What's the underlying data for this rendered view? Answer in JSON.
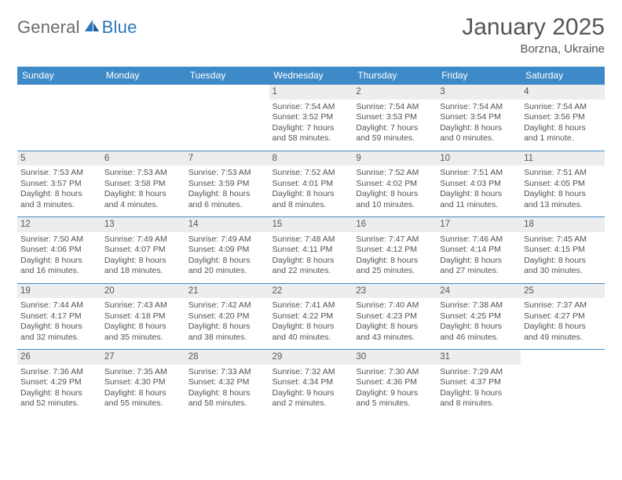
{
  "logo": {
    "word1": "General",
    "word2": "Blue"
  },
  "title": "January 2025",
  "location": "Borzna, Ukraine",
  "colors": {
    "header_bg": "#3e8ac8",
    "header_text": "#ffffff",
    "daynum_bg": "#ededed",
    "text": "#525252",
    "title_text": "#555555",
    "logo_gray": "#6a6a6a",
    "logo_blue": "#2a77bb",
    "rule": "#3e8ac8"
  },
  "typography": {
    "title_fontsize": 30,
    "location_fontsize": 15,
    "dayhead_fontsize": 12,
    "daynum_fontsize": 11.5,
    "body_fontsize": 10.5,
    "logo_fontsize": 22
  },
  "day_names": [
    "Sunday",
    "Monday",
    "Tuesday",
    "Wednesday",
    "Thursday",
    "Friday",
    "Saturday"
  ],
  "weeks": [
    [
      null,
      null,
      null,
      {
        "n": "1",
        "sunrise": "7:54 AM",
        "sunset": "3:52 PM",
        "daylight": "7 hours and 58 minutes."
      },
      {
        "n": "2",
        "sunrise": "7:54 AM",
        "sunset": "3:53 PM",
        "daylight": "7 hours and 59 minutes."
      },
      {
        "n": "3",
        "sunrise": "7:54 AM",
        "sunset": "3:54 PM",
        "daylight": "8 hours and 0 minutes."
      },
      {
        "n": "4",
        "sunrise": "7:54 AM",
        "sunset": "3:56 PM",
        "daylight": "8 hours and 1 minute."
      }
    ],
    [
      {
        "n": "5",
        "sunrise": "7:53 AM",
        "sunset": "3:57 PM",
        "daylight": "8 hours and 3 minutes."
      },
      {
        "n": "6",
        "sunrise": "7:53 AM",
        "sunset": "3:58 PM",
        "daylight": "8 hours and 4 minutes."
      },
      {
        "n": "7",
        "sunrise": "7:53 AM",
        "sunset": "3:59 PM",
        "daylight": "8 hours and 6 minutes."
      },
      {
        "n": "8",
        "sunrise": "7:52 AM",
        "sunset": "4:01 PM",
        "daylight": "8 hours and 8 minutes."
      },
      {
        "n": "9",
        "sunrise": "7:52 AM",
        "sunset": "4:02 PM",
        "daylight": "8 hours and 10 minutes."
      },
      {
        "n": "10",
        "sunrise": "7:51 AM",
        "sunset": "4:03 PM",
        "daylight": "8 hours and 11 minutes."
      },
      {
        "n": "11",
        "sunrise": "7:51 AM",
        "sunset": "4:05 PM",
        "daylight": "8 hours and 13 minutes."
      }
    ],
    [
      {
        "n": "12",
        "sunrise": "7:50 AM",
        "sunset": "4:06 PM",
        "daylight": "8 hours and 16 minutes."
      },
      {
        "n": "13",
        "sunrise": "7:49 AM",
        "sunset": "4:07 PM",
        "daylight": "8 hours and 18 minutes."
      },
      {
        "n": "14",
        "sunrise": "7:49 AM",
        "sunset": "4:09 PM",
        "daylight": "8 hours and 20 minutes."
      },
      {
        "n": "15",
        "sunrise": "7:48 AM",
        "sunset": "4:11 PM",
        "daylight": "8 hours and 22 minutes."
      },
      {
        "n": "16",
        "sunrise": "7:47 AM",
        "sunset": "4:12 PM",
        "daylight": "8 hours and 25 minutes."
      },
      {
        "n": "17",
        "sunrise": "7:46 AM",
        "sunset": "4:14 PM",
        "daylight": "8 hours and 27 minutes."
      },
      {
        "n": "18",
        "sunrise": "7:45 AM",
        "sunset": "4:15 PM",
        "daylight": "8 hours and 30 minutes."
      }
    ],
    [
      {
        "n": "19",
        "sunrise": "7:44 AM",
        "sunset": "4:17 PM",
        "daylight": "8 hours and 32 minutes."
      },
      {
        "n": "20",
        "sunrise": "7:43 AM",
        "sunset": "4:18 PM",
        "daylight": "8 hours and 35 minutes."
      },
      {
        "n": "21",
        "sunrise": "7:42 AM",
        "sunset": "4:20 PM",
        "daylight": "8 hours and 38 minutes."
      },
      {
        "n": "22",
        "sunrise": "7:41 AM",
        "sunset": "4:22 PM",
        "daylight": "8 hours and 40 minutes."
      },
      {
        "n": "23",
        "sunrise": "7:40 AM",
        "sunset": "4:23 PM",
        "daylight": "8 hours and 43 minutes."
      },
      {
        "n": "24",
        "sunrise": "7:38 AM",
        "sunset": "4:25 PM",
        "daylight": "8 hours and 46 minutes."
      },
      {
        "n": "25",
        "sunrise": "7:37 AM",
        "sunset": "4:27 PM",
        "daylight": "8 hours and 49 minutes."
      }
    ],
    [
      {
        "n": "26",
        "sunrise": "7:36 AM",
        "sunset": "4:29 PM",
        "daylight": "8 hours and 52 minutes."
      },
      {
        "n": "27",
        "sunrise": "7:35 AM",
        "sunset": "4:30 PM",
        "daylight": "8 hours and 55 minutes."
      },
      {
        "n": "28",
        "sunrise": "7:33 AM",
        "sunset": "4:32 PM",
        "daylight": "8 hours and 58 minutes."
      },
      {
        "n": "29",
        "sunrise": "7:32 AM",
        "sunset": "4:34 PM",
        "daylight": "9 hours and 2 minutes."
      },
      {
        "n": "30",
        "sunrise": "7:30 AM",
        "sunset": "4:36 PM",
        "daylight": "9 hours and 5 minutes."
      },
      {
        "n": "31",
        "sunrise": "7:29 AM",
        "sunset": "4:37 PM",
        "daylight": "9 hours and 8 minutes."
      },
      null
    ]
  ],
  "labels": {
    "sunrise": "Sunrise:",
    "sunset": "Sunset:",
    "daylight": "Daylight:"
  }
}
